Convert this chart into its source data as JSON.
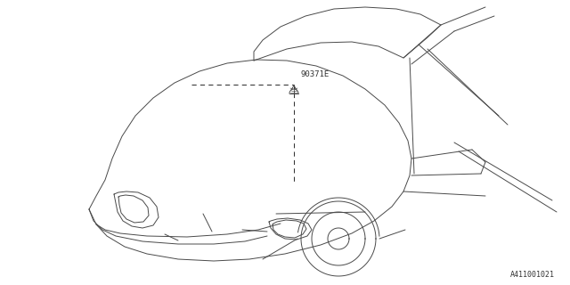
{
  "background_color": "#ffffff",
  "line_color": "#4a4a4a",
  "line_width": 0.7,
  "part_label": "90371E",
  "diagram_id": "A411001021",
  "fig_width": 6.4,
  "fig_height": 3.2,
  "dpi": 100
}
